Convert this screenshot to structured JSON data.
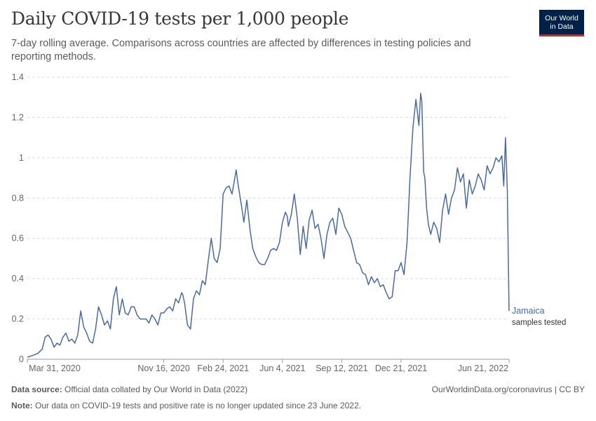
{
  "header": {
    "title": "Daily COVID-19 tests per 1,000 people",
    "subtitle": "7-day rolling average. Comparisons across countries are affected by differences in testing policies and reporting methods."
  },
  "logo": {
    "line1": "Our World",
    "line2": "in Data"
  },
  "footer": {
    "source_label": "Data source:",
    "source_text": "Official data collated by Our World in Data (2022)",
    "link_text": "OurWorldinData.org/coronavirus | CC BY",
    "note_label": "Note:",
    "note_text": "Our data on COVID-19 tests and positive rate is no longer updated since 23 June 2022."
  },
  "colors": {
    "series": "#4c6a9c",
    "grid": "#dddddd",
    "text": "#666666"
  },
  "chart_data": {
    "type": "line",
    "title": "Daily COVID-19 tests per 1,000 people",
    "ylabel": "",
    "xlabel": "",
    "ylim": [
      0,
      1.4
    ],
    "yticks": [
      0,
      0.2,
      0.4,
      0.6,
      0.8,
      1,
      1.2,
      1.4
    ],
    "ytick_labels": [
      "0",
      "0.2",
      "0.4",
      "0.6",
      "0.8",
      "1",
      "1.2",
      "1.4"
    ],
    "x_range_days": [
      0,
      812
    ],
    "x_start_label": "Mar 31, 2020",
    "xticks": [
      {
        "day": 0,
        "label": "Mar 31, 2020"
      },
      {
        "day": 230,
        "label": "Nov 16, 2020"
      },
      {
        "day": 330,
        "label": "Feb 24, 2021"
      },
      {
        "day": 430,
        "label": "Jun 4, 2021"
      },
      {
        "day": 530,
        "label": "Sep 12, 2021"
      },
      {
        "day": 630,
        "label": "Dec 21, 2021"
      },
      {
        "day": 812,
        "label": "Jun 21, 2022"
      }
    ],
    "series": [
      {
        "name": "Jamaica",
        "annotation": "samples tested",
        "x_days": [
          0,
          10,
          18,
          25,
          30,
          35,
          40,
          45,
          50,
          55,
          60,
          65,
          70,
          75,
          80,
          85,
          90,
          95,
          100,
          105,
          110,
          115,
          120,
          125,
          130,
          135,
          140,
          145,
          150,
          155,
          160,
          165,
          170,
          175,
          180,
          185,
          190,
          195,
          200,
          205,
          210,
          215,
          220,
          225,
          230,
          235,
          240,
          245,
          250,
          255,
          260,
          262,
          265,
          270,
          275,
          280,
          285,
          290,
          295,
          300,
          305,
          310,
          315,
          320,
          325,
          330,
          335,
          340,
          345,
          348,
          352,
          355,
          360,
          365,
          370,
          375,
          380,
          385,
          390,
          395,
          400,
          405,
          410,
          415,
          420,
          425,
          430,
          435,
          438,
          440,
          445,
          450,
          455,
          460,
          465,
          470,
          475,
          480,
          485,
          490,
          495,
          500,
          505,
          510,
          515,
          520,
          525,
          530,
          535,
          540,
          545,
          550,
          555,
          560,
          565,
          570,
          575,
          580,
          585,
          590,
          595,
          600,
          605,
          610,
          615,
          620,
          625,
          630,
          635,
          640,
          645,
          650,
          655,
          660,
          663,
          665,
          668,
          670,
          673,
          676,
          680,
          685,
          690,
          695,
          700,
          705,
          710,
          715,
          720,
          725,
          730,
          735,
          740,
          745,
          750,
          755,
          760,
          765,
          770,
          775,
          780,
          785,
          790,
          795,
          800,
          803,
          806,
          809,
          812
        ],
        "values": [
          0.01,
          0.02,
          0.03,
          0.05,
          0.11,
          0.12,
          0.1,
          0.06,
          0.08,
          0.07,
          0.11,
          0.13,
          0.09,
          0.1,
          0.08,
          0.12,
          0.24,
          0.16,
          0.13,
          0.09,
          0.08,
          0.15,
          0.26,
          0.22,
          0.17,
          0.19,
          0.15,
          0.3,
          0.36,
          0.22,
          0.3,
          0.23,
          0.22,
          0.26,
          0.26,
          0.22,
          0.2,
          0.2,
          0.2,
          0.18,
          0.22,
          0.2,
          0.17,
          0.23,
          0.23,
          0.25,
          0.26,
          0.24,
          0.3,
          0.28,
          0.33,
          0.32,
          0.28,
          0.17,
          0.15,
          0.3,
          0.34,
          0.32,
          0.39,
          0.37,
          0.49,
          0.6,
          0.5,
          0.48,
          0.55,
          0.82,
          0.85,
          0.86,
          0.82,
          0.87,
          0.94,
          0.87,
          0.78,
          0.68,
          0.79,
          0.65,
          0.55,
          0.51,
          0.48,
          0.47,
          0.47,
          0.5,
          0.54,
          0.55,
          0.54,
          0.58,
          0.68,
          0.73,
          0.71,
          0.66,
          0.72,
          0.82,
          0.7,
          0.52,
          0.66,
          0.55,
          0.69,
          0.74,
          0.65,
          0.67,
          0.6,
          0.5,
          0.62,
          0.68,
          0.7,
          0.62,
          0.75,
          0.72,
          0.66,
          0.63,
          0.6,
          0.54,
          0.48,
          0.47,
          0.43,
          0.42,
          0.37,
          0.41,
          0.38,
          0.4,
          0.36,
          0.37,
          0.33,
          0.3,
          0.31,
          0.44,
          0.44,
          0.48,
          0.42,
          0.58,
          0.9,
          1.15,
          1.29,
          1.16,
          1.32,
          1.28,
          0.93,
          0.9,
          0.75,
          0.67,
          0.62,
          0.68,
          0.65,
          0.58,
          0.74,
          0.82,
          0.72,
          0.8,
          0.84,
          0.95,
          0.88,
          0.92,
          0.75,
          0.89,
          0.82,
          0.86,
          0.92,
          0.89,
          0.84,
          0.96,
          0.92,
          0.95,
          1,
          0.98,
          1.01,
          0.86,
          1.1,
          0.84,
          0.24
        ]
      }
    ]
  }
}
